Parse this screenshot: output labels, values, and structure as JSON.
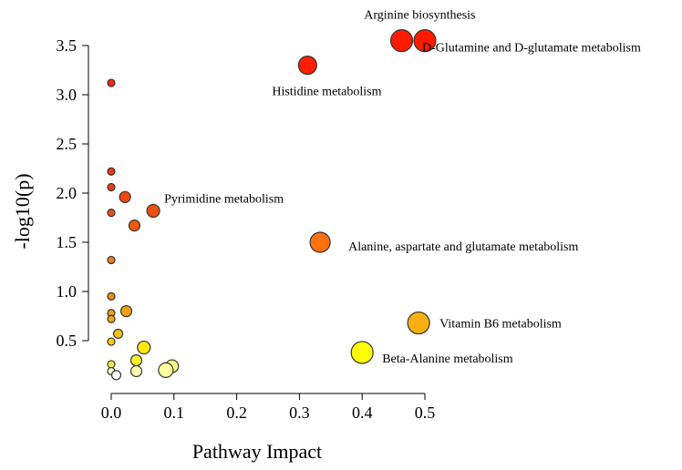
{
  "chart_data": {
    "type": "scatter",
    "title": "",
    "xlabel": "Pathway Impact",
    "ylabel": "-log10(p)",
    "xlim": [
      0,
      0.5
    ],
    "ylim": [
      0.1,
      3.6
    ],
    "xticks": [
      0.0,
      0.1,
      0.2,
      0.3,
      0.4,
      0.5
    ],
    "xtick_labels": [
      "0.0",
      "0.1",
      "0.2",
      "0.3",
      "0.4",
      "0.5"
    ],
    "yticks": [
      0.5,
      1.0,
      1.5,
      2.0,
      2.5,
      3.0,
      3.5
    ],
    "ytick_labels": [
      "0.5",
      "1.0",
      "1.5",
      "2.0",
      "2.5",
      "3.0",
      "3.5"
    ],
    "grid": false,
    "legend": "none",
    "color_scale": {
      "low": "#ffffff",
      "mid": "#ffff00",
      "high": "#ff0000",
      "note": "color encodes -log10(p); size encodes pathway impact"
    },
    "points": [
      {
        "x": 0.463,
        "y": 3.55,
        "size": 12,
        "color": "#ff1a00"
      },
      {
        "x": 0.5,
        "y": 3.55,
        "size": 12,
        "color": "#ff1a00"
      },
      {
        "x": 0.313,
        "y": 3.3,
        "size": 10,
        "color": "#ff1e00"
      },
      {
        "x": 0.0,
        "y": 3.12,
        "size": 4,
        "color": "#ee2a10"
      },
      {
        "x": 0.0,
        "y": 2.22,
        "size": 4,
        "color": "#ee3a10"
      },
      {
        "x": 0.0,
        "y": 2.06,
        "size": 4,
        "color": "#ee4010"
      },
      {
        "x": 0.022,
        "y": 1.96,
        "size": 6,
        "color": "#ee4a10"
      },
      {
        "x": 0.067,
        "y": 1.82,
        "size": 7,
        "color": "#ee5010"
      },
      {
        "x": 0.0,
        "y": 1.8,
        "size": 4,
        "color": "#ee5010"
      },
      {
        "x": 0.037,
        "y": 1.67,
        "size": 6,
        "color": "#ee5810"
      },
      {
        "x": 0.333,
        "y": 1.5,
        "size": 11,
        "color": "#ff7010"
      },
      {
        "x": 0.0,
        "y": 1.32,
        "size": 4,
        "color": "#ee8010"
      },
      {
        "x": 0.0,
        "y": 0.95,
        "size": 4,
        "color": "#f09010"
      },
      {
        "x": 0.024,
        "y": 0.8,
        "size": 6,
        "color": "#f0a010"
      },
      {
        "x": 0.0,
        "y": 0.78,
        "size": 4,
        "color": "#f0a010"
      },
      {
        "x": 0.0,
        "y": 0.72,
        "size": 4,
        "color": "#f0a810"
      },
      {
        "x": 0.49,
        "y": 0.68,
        "size": 12,
        "color": "#f8b010"
      },
      {
        "x": 0.011,
        "y": 0.57,
        "size": 5,
        "color": "#f8c010"
      },
      {
        "x": 0.0,
        "y": 0.49,
        "size": 4,
        "color": "#f8d010"
      },
      {
        "x": 0.052,
        "y": 0.43,
        "size": 7,
        "color": "#ffe810"
      },
      {
        "x": 0.4,
        "y": 0.38,
        "size": 12,
        "color": "#ffff00"
      },
      {
        "x": 0.04,
        "y": 0.3,
        "size": 6,
        "color": "#ffee30"
      },
      {
        "x": 0.0,
        "y": 0.26,
        "size": 4,
        "color": "#f8f040"
      },
      {
        "x": 0.097,
        "y": 0.24,
        "size": 7,
        "color": "#fff880"
      },
      {
        "x": 0.087,
        "y": 0.2,
        "size": 8,
        "color": "#ffffa0"
      },
      {
        "x": 0.04,
        "y": 0.19,
        "size": 6,
        "color": "#ffffb0"
      },
      {
        "x": 0.0,
        "y": 0.19,
        "size": 4,
        "color": "#ffffcc"
      },
      {
        "x": 0.008,
        "y": 0.15,
        "size": 5,
        "color": "#ffffff"
      }
    ],
    "annotations": [
      {
        "text": "Arginine biosynthesis",
        "x": 0.48,
        "y": 3.55
      },
      {
        "text": "D-Glutamine and D-glutamate metabolism",
        "x": 0.5,
        "y": 3.55
      },
      {
        "text": "Histidine metabolism",
        "x": 0.313,
        "y": 3.3
      },
      {
        "text": "Pyrimidine metabolism",
        "x": 0.067,
        "y": 1.82
      },
      {
        "text": "Alanine, aspartate and glutamate metabolism",
        "x": 0.333,
        "y": 1.5
      },
      {
        "text": "Vitamin B6 metabolism",
        "x": 0.49,
        "y": 0.68
      },
      {
        "text": "Beta-Alanine metabolism",
        "x": 0.4,
        "y": 0.38
      }
    ]
  }
}
